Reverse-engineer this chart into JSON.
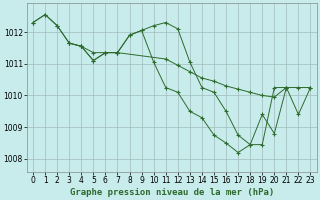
{
  "background_color": "#c8ecec",
  "grid_color": "#b0c8c8",
  "line_color": "#2d6a2d",
  "title": "Graphe pression niveau de la mer (hPa)",
  "xlim": [
    -0.5,
    23.5
  ],
  "ylim": [
    1007.6,
    1012.9
  ],
  "xticks": [
    0,
    1,
    2,
    3,
    4,
    5,
    6,
    7,
    8,
    9,
    10,
    11,
    12,
    13,
    14,
    15,
    16,
    17,
    18,
    19,
    20,
    21,
    22,
    23
  ],
  "yticks": [
    1008,
    1009,
    1010,
    1011,
    1012
  ],
  "series1_x": [
    0,
    1,
    2,
    3,
    4,
    5,
    6,
    7,
    11,
    12,
    13,
    14,
    15,
    16,
    17,
    18,
    19,
    20,
    21,
    22,
    23
  ],
  "series1_y": [
    1012.3,
    1012.55,
    1012.2,
    1011.65,
    1011.55,
    1011.35,
    1011.35,
    1011.35,
    1011.15,
    1010.95,
    1010.75,
    1010.55,
    1010.45,
    1010.3,
    1010.2,
    1010.1,
    1010.0,
    1009.95,
    1010.25,
    1010.25,
    1010.25
  ],
  "series2_x": [
    0,
    1,
    2,
    3,
    4,
    5,
    6,
    7,
    8,
    9,
    10,
    11,
    12,
    13,
    14,
    15,
    16,
    17,
    18,
    19,
    20,
    21
  ],
  "series2_y": [
    1012.3,
    1012.55,
    1012.2,
    1011.65,
    1011.55,
    1011.1,
    1011.35,
    1011.35,
    1011.9,
    1012.05,
    1012.2,
    1012.3,
    1012.1,
    1011.05,
    1010.25,
    1010.1,
    1009.5,
    1008.75,
    1008.45,
    1008.45,
    1010.25,
    1010.25
  ],
  "series3_x": [
    3,
    4,
    5,
    6,
    7,
    8,
    9,
    10,
    11,
    12,
    13,
    14,
    15,
    16,
    17,
    18,
    19,
    20,
    21,
    22,
    23
  ],
  "series3_y": [
    1011.65,
    1011.55,
    1011.1,
    1011.35,
    1011.35,
    1011.9,
    1012.05,
    1011.05,
    1010.25,
    1010.1,
    1009.5,
    1009.3,
    1008.75,
    1008.5,
    1008.2,
    1008.45,
    1009.4,
    1008.8,
    1010.25,
    1009.4,
    1010.25
  ],
  "tick_fontsize": 5.5,
  "label_fontsize": 6.5
}
